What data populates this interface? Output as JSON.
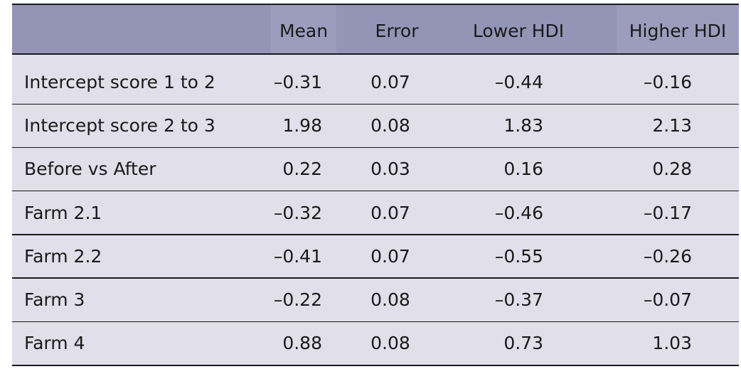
{
  "table": {
    "headers": [
      "",
      "Mean",
      "Error",
      "Lower HDI",
      "Higher HDI"
    ],
    "rows": [
      [
        "Intercept score 1 to 2",
        "–0.31",
        "0.07",
        "–0.44",
        "–0.16"
      ],
      [
        "Intercept score 2 to 3",
        "1.98",
        "0.08",
        "1.83",
        "2.13"
      ],
      [
        "Before vs After",
        "0.22",
        "0.03",
        "0.16",
        "0.28"
      ],
      [
        "Farm 2.1",
        "–0.32",
        "0.07",
        "–0.46",
        "–0.17"
      ],
      [
        "Farm 2.2",
        "–0.41",
        "0.07",
        "–0.55",
        "–0.26"
      ],
      [
        "Farm 3",
        "–0.22",
        "0.08",
        "–0.37",
        "–0.07"
      ],
      [
        "Farm 4",
        "0.88",
        "0.08",
        "0.73",
        "1.03"
      ]
    ]
  },
  "colors": {
    "header_bg": "#9394b6",
    "body_bg": "#e0dfea",
    "rule": "#1a1a1a"
  }
}
